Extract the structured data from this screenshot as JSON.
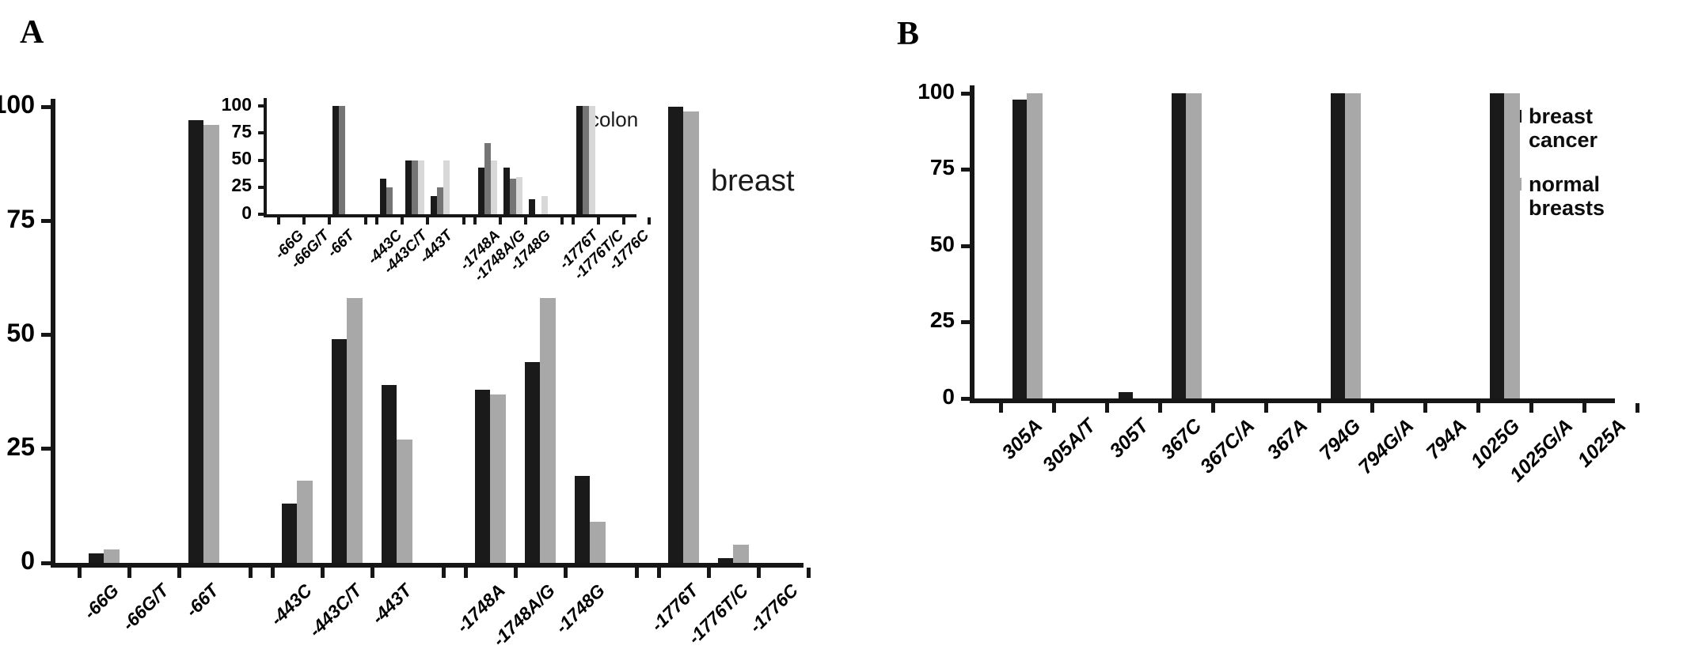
{
  "figure": {
    "panel_a_letter": "A",
    "panel_b_letter": "B"
  },
  "chart_data": [
    {
      "id": "breast_main",
      "type": "bar",
      "region_label": "breast",
      "categories": [
        "-66G",
        "-66G/T",
        "-66T",
        "-443C",
        "-443C/T",
        "-443T",
        "-1748A",
        "-1748A/G",
        "-1748G",
        "-1776T",
        "-1776T/C",
        "-1776C"
      ],
      "series": [
        {
          "name": "breast cancer",
          "color": "#1a1a1a",
          "values": [
            2,
            0,
            97,
            13,
            49,
            39,
            38,
            44,
            19,
            100,
            1,
            0
          ]
        },
        {
          "name": "normal breasts",
          "color": "#a8a8a8",
          "values": [
            3,
            0,
            96,
            18,
            58,
            27,
            37,
            58,
            9,
            99,
            4,
            0
          ]
        }
      ],
      "yticks": [
        0,
        25,
        50,
        75,
        100
      ],
      "ylim": [
        0,
        100
      ],
      "grid": false,
      "legend_position": "none"
    },
    {
      "id": "colon_inset",
      "type": "bar",
      "region_label": "colon",
      "categories": [
        "-66G",
        "-66G/T",
        "-66T",
        "-443C",
        "-443C/T",
        "-443T",
        "-1748A",
        "-1748A/G",
        "-1748G",
        "-1776T",
        "-1776T/C",
        "-1776C"
      ],
      "series": [
        {
          "name": "series-black",
          "color": "#1a1a1a",
          "values": [
            0,
            0,
            100,
            33,
            50,
            17,
            43,
            43,
            14,
            100,
            0,
            0
          ]
        },
        {
          "name": "series-dark-gray",
          "color": "#757575",
          "values": [
            0,
            0,
            100,
            25,
            50,
            25,
            66,
            33,
            0,
            100,
            0,
            0
          ]
        },
        {
          "name": "series-light-gray",
          "color": "#d8d8d8",
          "values": [
            0,
            0,
            0,
            0,
            50,
            50,
            50,
            34,
            17,
            100,
            0,
            0
          ]
        }
      ],
      "yticks": [
        0,
        25,
        50,
        75,
        100
      ],
      "ylim": [
        0,
        100
      ],
      "grid": false,
      "legend_position": "none"
    },
    {
      "id": "panel_b",
      "type": "bar",
      "region_label": "",
      "categories": [
        "305A",
        "305A/T",
        "305T",
        "367C",
        "367C/A",
        "367A",
        "794G",
        "794G/A",
        "794A",
        "1025G",
        "1025G/A",
        "1025A"
      ],
      "series": [
        {
          "name": "breast cancer",
          "color": "#1a1a1a",
          "values": [
            98,
            0,
            2,
            100,
            0,
            0,
            100,
            0,
            0,
            100,
            0,
            0
          ]
        },
        {
          "name": "normal breasts",
          "color": "#a8a8a8",
          "values": [
            100,
            0,
            0,
            100,
            0,
            0,
            100,
            0,
            0,
            100,
            0,
            0
          ]
        }
      ],
      "yticks": [
        0,
        25,
        50,
        75,
        100
      ],
      "ylim": [
        0,
        100
      ],
      "grid": false,
      "legend_position": "right"
    }
  ]
}
